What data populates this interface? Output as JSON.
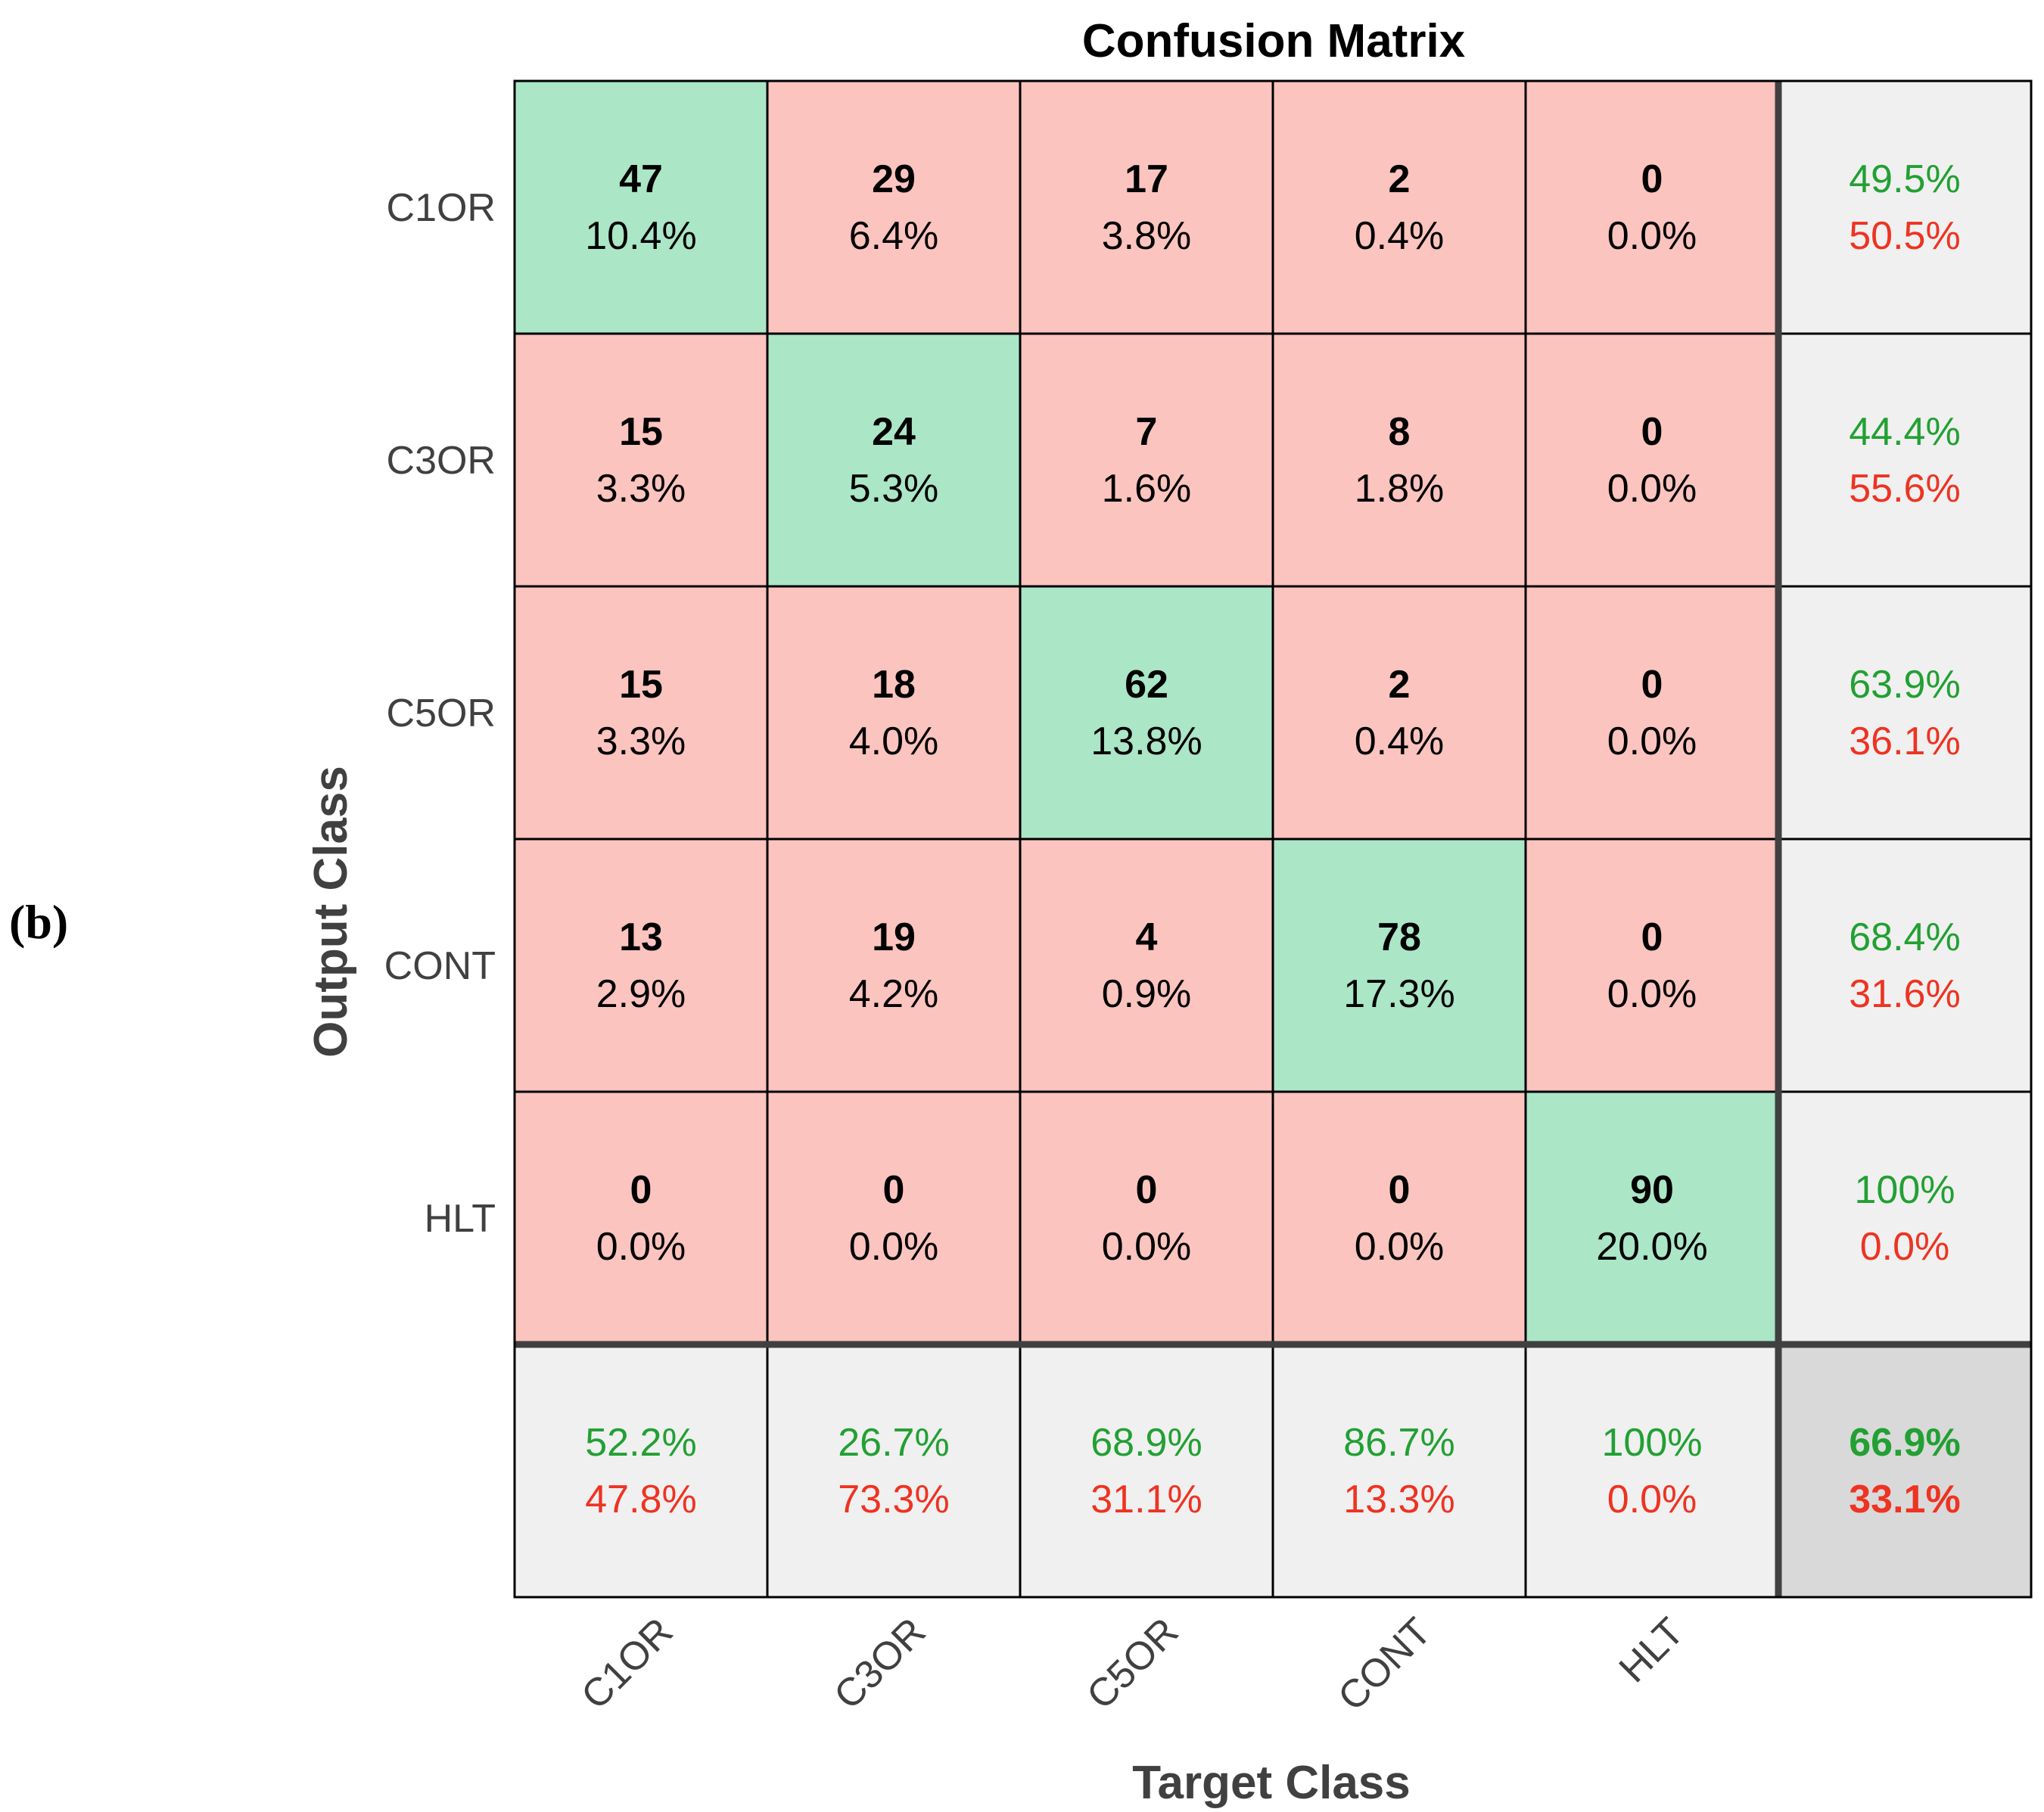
{
  "panel_label": "(b)",
  "colors": {
    "correct": "#abe6c7",
    "incorrect": "#fcc4bf",
    "summary": "#f0f0f0",
    "overall": "#d9d9d9",
    "good_text": "#22a033",
    "bad_text": "#ee3322"
  },
  "chart_data": {
    "type": "table",
    "title": "Confusion Matrix",
    "xlabel": "Target Class",
    "ylabel": "Output Class",
    "output_classes": [
      "C1OR",
      "C3OR",
      "C5OR",
      "CONT",
      "HLT"
    ],
    "target_classes": [
      "C1OR",
      "C3OR",
      "C5OR",
      "CONT",
      "HLT"
    ],
    "counts": [
      [
        47,
        29,
        17,
        2,
        0
      ],
      [
        15,
        24,
        7,
        8,
        0
      ],
      [
        15,
        18,
        62,
        2,
        0
      ],
      [
        13,
        19,
        4,
        78,
        0
      ],
      [
        0,
        0,
        0,
        0,
        90
      ]
    ],
    "percents": [
      [
        "10.4%",
        "6.4%",
        "3.8%",
        "0.4%",
        "0.0%"
      ],
      [
        "3.3%",
        "5.3%",
        "1.6%",
        "1.8%",
        "0.0%"
      ],
      [
        "3.3%",
        "4.0%",
        "13.8%",
        "0.4%",
        "0.0%"
      ],
      [
        "2.9%",
        "4.2%",
        "0.9%",
        "17.3%",
        "0.0%"
      ],
      [
        "0.0%",
        "0.0%",
        "0.0%",
        "0.0%",
        "20.0%"
      ]
    ],
    "row_summary": [
      [
        "49.5%",
        "50.5%"
      ],
      [
        "44.4%",
        "55.6%"
      ],
      [
        "63.9%",
        "36.1%"
      ],
      [
        "68.4%",
        "31.6%"
      ],
      [
        "100%",
        "0.0%"
      ]
    ],
    "col_summary": [
      [
        "52.2%",
        "47.8%"
      ],
      [
        "26.7%",
        "73.3%"
      ],
      [
        "68.9%",
        "31.1%"
      ],
      [
        "86.7%",
        "13.3%"
      ],
      [
        "100%",
        "0.0%"
      ]
    ],
    "overall": [
      "66.9%",
      "33.1%"
    ]
  }
}
